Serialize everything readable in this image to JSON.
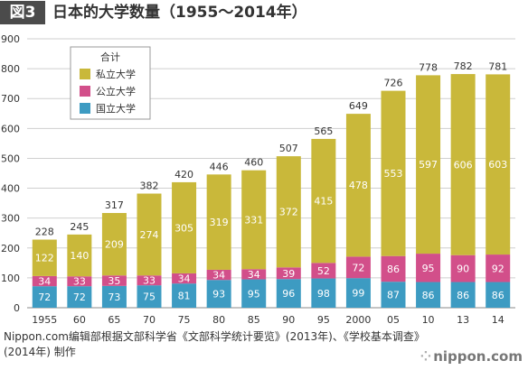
{
  "header": {
    "fig_label": "図3",
    "title": "日本的大学数量（1955～2014年）"
  },
  "chart_data": {
    "type": "bar",
    "stacked": true,
    "categories": [
      "1955",
      "60",
      "65",
      "70",
      "75",
      "80",
      "85",
      "90",
      "95",
      "2000",
      "05",
      "10",
      "13",
      "14"
    ],
    "series": [
      {
        "name": "国立大学",
        "color": "#3d9bc2",
        "values": [
          72,
          72,
          73,
          75,
          81,
          93,
          95,
          96,
          98,
          99,
          87,
          86,
          86,
          86
        ]
      },
      {
        "name": "公立大学",
        "color": "#d24f8a",
        "values": [
          34,
          33,
          35,
          33,
          34,
          34,
          34,
          39,
          52,
          72,
          86,
          95,
          90,
          92
        ]
      },
      {
        "name": "私立大学",
        "color": "#c9b83a",
        "values": [
          122,
          140,
          209,
          274,
          305,
          319,
          331,
          372,
          415,
          478,
          553,
          597,
          606,
          603
        ]
      }
    ],
    "totals": [
      228,
      245,
      317,
      382,
      420,
      446,
      460,
      507,
      565,
      649,
      726,
      778,
      782,
      781
    ],
    "legend_title": "合计",
    "legend_position": "top-left",
    "ylim": [
      0,
      900
    ],
    "yticks": [
      0,
      100,
      200,
      300,
      400,
      500,
      600,
      700,
      800,
      900
    ],
    "grid": true
  },
  "footer": {
    "source_line1": "Nippon.com编辑部根据文部科学省《文部科学统计要览》(2013年)、《学校基本调查》",
    "source_line2": "(2014年) 制作",
    "brand": "nippon.com"
  }
}
